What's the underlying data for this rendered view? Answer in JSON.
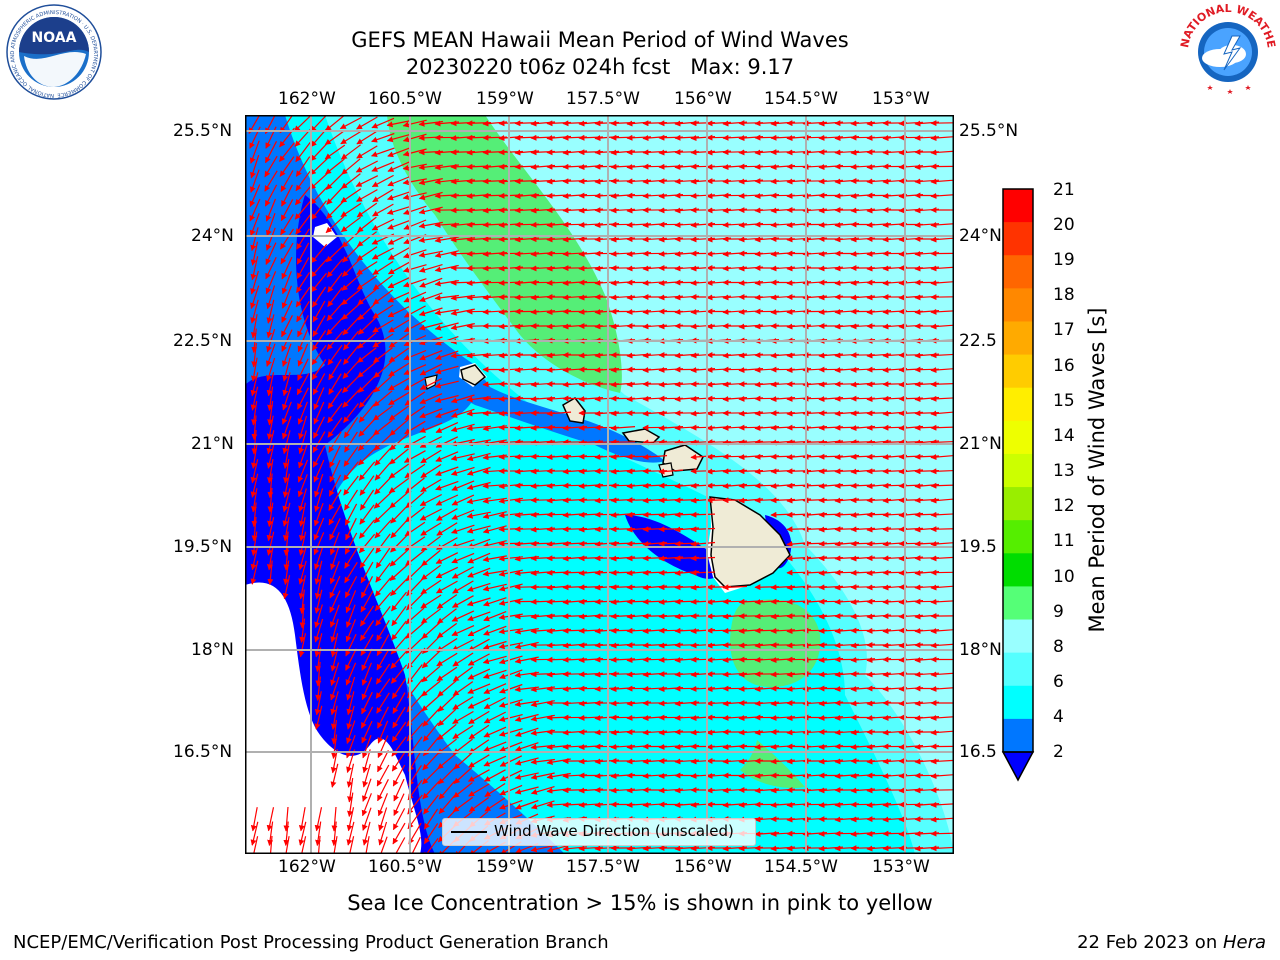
{
  "header": {
    "title_line1": "GEFS MEAN Hawaii Mean Period of Wind Waves",
    "title_line2": "20230220 t06z 024h fcst   Max: 9.17"
  },
  "logos": {
    "left_name": "NOAA",
    "left_ring": "NATIONAL OCEANIC AND ATMOSPHERIC ADMINISTRATION · U.S. DEPARTMENT OF COMMERCE",
    "right_ring": "NATIONAL WEATHER SERVICE"
  },
  "map": {
    "lon_labels": [
      "162°W",
      "160.5°W",
      "159°W",
      "157.5°W",
      "156°W",
      "154.5°W",
      "153°W"
    ],
    "lat_labels_left": [
      "25.5°N",
      "24°N",
      "22.5°N",
      "21°N",
      "19.5°N",
      "18°N",
      "16.5°N"
    ],
    "lat_labels_right": [
      "25.5°N",
      "24°N",
      "22.5",
      "21°N",
      "19.5",
      "18°N",
      "16.5"
    ],
    "legend_label": "Wind Wave Direction (unscaled)",
    "arrow_color": "#ff0000"
  },
  "colorbar": {
    "label": "Mean Period of Wind Waves [s]",
    "ticks": [
      "21",
      "20",
      "19",
      "18",
      "17",
      "16",
      "15",
      "14",
      "13",
      "12",
      "11",
      "10",
      "9",
      "8",
      "6",
      "4",
      "2"
    ],
    "colors_top_to_bottom": [
      "#ff0000",
      "#ff3300",
      "#ff6600",
      "#ff8800",
      "#ffaa00",
      "#ffcc00",
      "#ffee00",
      "#eeff00",
      "#ccff00",
      "#99ee00",
      "#55ee00",
      "#00dd00",
      "#55ff77",
      "#99ffff",
      "#55ffff",
      "#00ffff",
      "#0077ff"
    ],
    "extend_color": "#0000ff"
  },
  "note": "Sea Ice Concentration > 15% is shown in pink to yellow",
  "footer": {
    "left": "NCEP/EMC/Verification Post Processing Product Generation Branch",
    "right_prefix": "22 Feb 2023 on ",
    "right_italic": "Hera"
  }
}
